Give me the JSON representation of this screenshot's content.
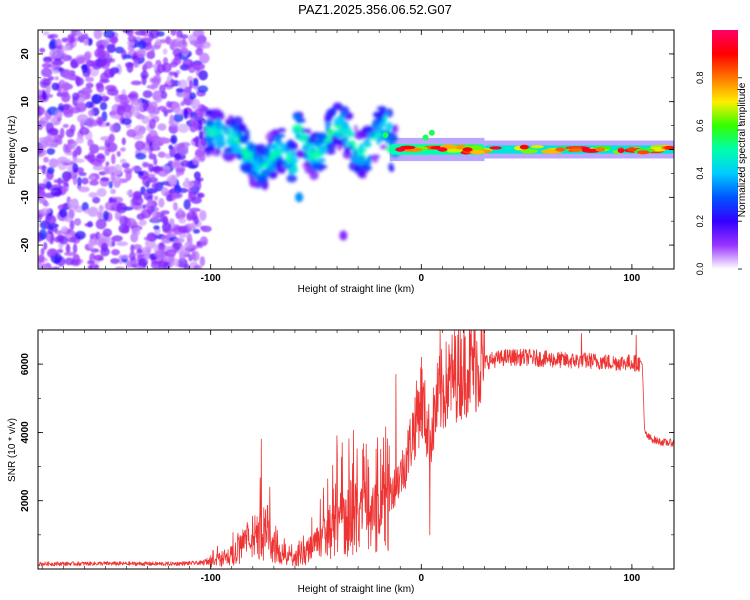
{
  "figure_title": "PAZ1.2025.356.06.52.G07",
  "chart_data": [
    {
      "type": "heatmap",
      "panel": "top",
      "title": "PAZ1.2025.356.06.52.G07",
      "xlabel": "Height of straight line (km)",
      "ylabel": "Frequency (Hz)",
      "xlim": [
        -182,
        120
      ],
      "ylim": [
        -25,
        25
      ],
      "x_ticks": [
        -100,
        0,
        100
      ],
      "x_tick_labels": [
        "-100",
        "0",
        "100"
      ],
      "y_ticks": [
        20,
        10,
        0,
        -10,
        -20
      ],
      "y_tick_labels": [
        "20",
        "10",
        "0",
        "-10",
        "-20"
      ],
      "colorbar": {
        "label": "Normalized spectral amplitude",
        "range": [
          0,
          1
        ],
        "ticks": [
          0.0,
          0.2,
          0.4,
          0.6,
          0.8
        ],
        "tick_labels": [
          "0.0",
          "0.2",
          "0.4",
          "0.6",
          "0.8"
        ],
        "colormap": [
          "#ffffff",
          "#9933ff",
          "#3300ff",
          "#0055ff",
          "#00ccff",
          "#00ffaa",
          "#33ff00",
          "#ffee00",
          "#ff7700",
          "#ff0000",
          "#ff0066"
        ]
      },
      "regions": [
        {
          "name": "noise",
          "x_range": [
            -182,
            -102
          ],
          "freq_range": [
            -25,
            25
          ],
          "amplitude": 0.15
        },
        {
          "name": "onset",
          "x_range": [
            -102,
            -85
          ],
          "freq_center": [
            5,
            2
          ],
          "amplitude": 0.4
        },
        {
          "name": "scintillation",
          "x_range": [
            -85,
            -15
          ],
          "freq_center": [
            -2,
            3
          ],
          "amplitude": 0.45
        },
        {
          "name": "stable-signal",
          "x_range": [
            -15,
            120
          ],
          "freq_center": 0,
          "amplitude": 0.9
        }
      ]
    },
    {
      "type": "line",
      "panel": "bottom",
      "xlabel": "Height of straight line (km)",
      "ylabel": "SNR (10 * v/v)",
      "xlim": [
        -182,
        120
      ],
      "ylim": [
        0,
        7000
      ],
      "x_ticks": [
        -100,
        0,
        100
      ],
      "x_tick_labels": [
        "-100",
        "0",
        "100"
      ],
      "y_ticks": [
        2000,
        4000,
        6000
      ],
      "y_tick_labels": [
        "2000",
        "4000",
        "6000"
      ],
      "color": "#ee3333",
      "series": [
        {
          "name": "SNR",
          "x": [
            -182,
            -150,
            -120,
            -104,
            -100,
            -95,
            -90,
            -85,
            -80,
            -76,
            -72,
            -68,
            -64,
            -60,
            -56,
            -52,
            -48,
            -44,
            -40,
            -36,
            -32,
            -28,
            -24,
            -20,
            -16,
            -12,
            -8,
            -4,
            0,
            4,
            8,
            12,
            16,
            20,
            24,
            28,
            32,
            40,
            50,
            60,
            70,
            80,
            90,
            100,
            105,
            106,
            108,
            112,
            116,
            120
          ],
          "values": [
            150,
            160,
            150,
            180,
            250,
            350,
            500,
            700,
            1000,
            1400,
            900,
            500,
            400,
            350,
            500,
            700,
            1000,
            1300,
            1600,
            1800,
            1900,
            1800,
            1700,
            1800,
            2100,
            2500,
            3000,
            4000,
            5000,
            3800,
            5000,
            5400,
            5700,
            5850,
            6000,
            6050,
            6100,
            6200,
            6200,
            6150,
            6100,
            6100,
            6050,
            6050,
            6000,
            4000,
            3850,
            3750,
            3700,
            3700
          ]
        }
      ],
      "spikes": [
        {
          "x": -76,
          "value": 3800
        },
        {
          "x": -72,
          "value": 2400
        },
        {
          "x": -40,
          "value": 3900
        },
        {
          "x": -12,
          "value": 5700
        },
        {
          "x": 0,
          "value": 6200
        },
        {
          "x": 4,
          "value": 1000
        },
        {
          "x": 9,
          "value": 7000
        },
        {
          "x": 76,
          "value": 6900
        },
        {
          "x": 102,
          "value": 6850
        }
      ]
    }
  ]
}
